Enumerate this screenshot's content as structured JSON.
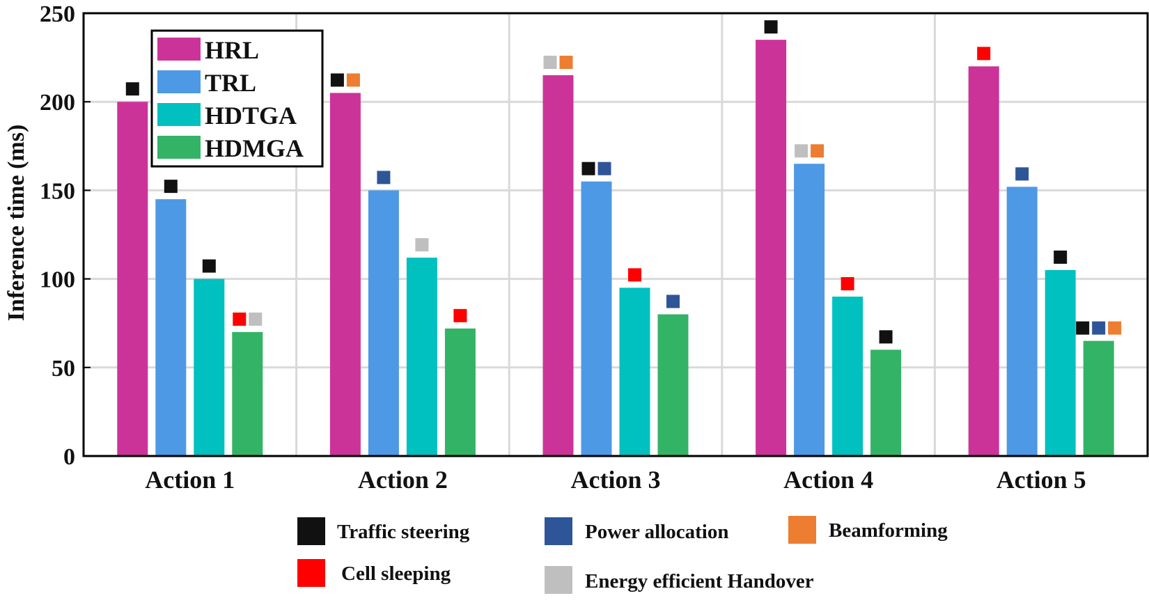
{
  "chart_data": {
    "type": "bar",
    "ylabel": "Inference time (ms)",
    "xlabel": "",
    "ylim": [
      0,
      250
    ],
    "yticks": [
      "0",
      "50",
      "100",
      "150",
      "200",
      "250"
    ],
    "categories": [
      "Action 1",
      "Action 2",
      "Action 3",
      "Action 4",
      "Action 5"
    ],
    "grid": true,
    "legend_position": "top-left",
    "series": [
      {
        "name": "HRL",
        "color": "#cc3399",
        "values": [
          200,
          205,
          215,
          235,
          220
        ]
      },
      {
        "name": "TRL",
        "color": "#4d99e6",
        "values": [
          145,
          150,
          155,
          165,
          152
        ]
      },
      {
        "name": "HDTGA",
        "color": "#00c0c0",
        "values": [
          100,
          112,
          95,
          90,
          105
        ]
      },
      {
        "name": "HDMGA",
        "color": "#33b366",
        "values": [
          70,
          72,
          80,
          60,
          65
        ]
      }
    ],
    "marker_types": [
      {
        "key": "traffic",
        "label": "Traffic steering",
        "color": "#111111"
      },
      {
        "key": "power",
        "label": "Power allocation",
        "color": "#2e5597"
      },
      {
        "key": "beam",
        "label": "Beamforming",
        "color": "#ed7d31"
      },
      {
        "key": "cell",
        "label": "Cell sleeping",
        "color": "#ff0000"
      },
      {
        "key": "handover",
        "label": "Energy efficient Handover",
        "color": "#bfbfbf"
      }
    ],
    "bar_markers": [
      [
        [
          "traffic"
        ],
        [
          "traffic"
        ],
        [
          "traffic"
        ],
        [
          "cell",
          "handover"
        ]
      ],
      [
        [
          "traffic",
          "beam"
        ],
        [
          "power"
        ],
        [
          "handover"
        ],
        [
          "cell"
        ]
      ],
      [
        [
          "handover",
          "beam"
        ],
        [
          "traffic",
          "power"
        ],
        [
          "cell"
        ],
        [
          "power"
        ]
      ],
      [
        [
          "traffic"
        ],
        [
          "handover",
          "beam"
        ],
        [
          "cell"
        ],
        [
          "traffic"
        ]
      ],
      [
        [
          "cell"
        ],
        [
          "power"
        ],
        [
          "traffic"
        ],
        [
          "traffic",
          "power",
          "beam"
        ]
      ]
    ]
  }
}
